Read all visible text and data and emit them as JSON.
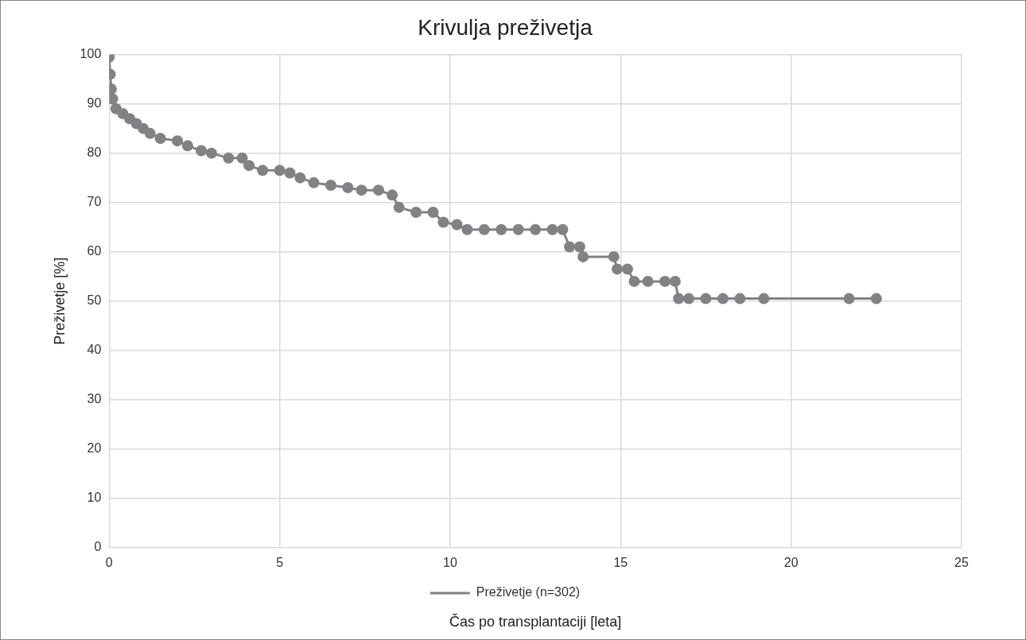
{
  "chart_data": {
    "type": "line",
    "title": "Krivulja preživetja",
    "xlabel": "Čas po transplantaciji [leta]",
    "ylabel": "Preživetje [%]",
    "xlim": [
      0,
      25
    ],
    "xticks": [
      0,
      5,
      10,
      15,
      20,
      25
    ],
    "ylim": [
      0,
      100
    ],
    "yticks": [
      0,
      10,
      20,
      30,
      40,
      50,
      60,
      70,
      80,
      90,
      100
    ],
    "grid": true,
    "legend": "bottom",
    "marker": "circle",
    "line_style": "solid",
    "series": [
      {
        "name": "Preživetje (n=302)",
        "color": "#808285",
        "x": [
          0,
          0.03,
          0.06,
          0.1,
          0.2,
          0.4,
          0.6,
          0.8,
          1.0,
          1.2,
          1.5,
          2.0,
          2.3,
          2.7,
          3.0,
          3.5,
          3.9,
          4.1,
          4.5,
          5.0,
          5.3,
          5.6,
          6.0,
          6.5,
          7.0,
          7.4,
          7.9,
          8.3,
          8.5,
          9.0,
          9.5,
          9.8,
          10.2,
          10.5,
          11.0,
          11.5,
          12.0,
          12.5,
          13.0,
          13.3,
          13.5,
          13.8,
          13.9,
          14.8,
          14.9,
          15.2,
          15.4,
          15.8,
          16.3,
          16.6,
          16.7,
          17.0,
          17.5,
          18.0,
          18.5,
          19.2,
          21.7,
          22.5
        ],
        "values": [
          99.5,
          96,
          93,
          91,
          89,
          88,
          87,
          86,
          85,
          84,
          83,
          82.5,
          81.5,
          80.5,
          80,
          79,
          79,
          77.5,
          76.5,
          76.5,
          76,
          75,
          74,
          73.5,
          73,
          72.5,
          72.5,
          71.5,
          69,
          68,
          68,
          66,
          65.5,
          64.5,
          64.5,
          64.5,
          64.5,
          64.5,
          64.5,
          64.5,
          61,
          61,
          59,
          59,
          56.5,
          56.5,
          54,
          54,
          54,
          54,
          50.5,
          50.5,
          50.5,
          50.5,
          50.5,
          50.5,
          50.5,
          50.5
        ]
      }
    ]
  }
}
